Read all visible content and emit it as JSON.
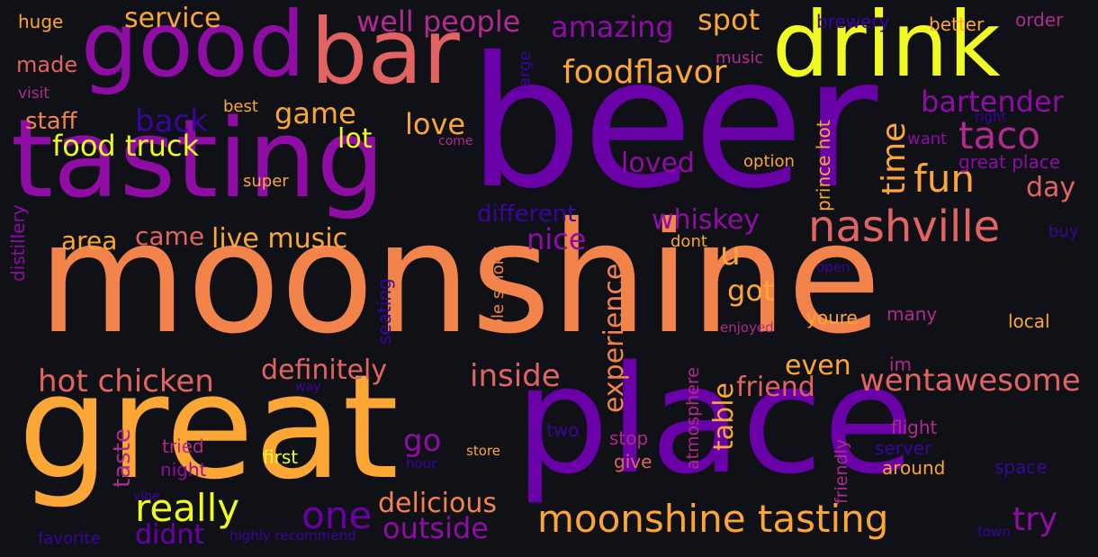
{
  "palette": {
    "background": "#0f1117",
    "violet": "#6a00a8",
    "purple": "#8f0da4",
    "magenta": "#b12a90",
    "pink": "#cc4778",
    "salmon": "#e16462",
    "orange": "#f2844b",
    "amber": "#fca636",
    "yellow": "#f0f921",
    "indigo": "#3b049a"
  },
  "words": [
    {
      "text": "moonshine",
      "color": "orange"
    },
    {
      "text": "beer",
      "color": "violet"
    },
    {
      "text": "great",
      "color": "amber"
    },
    {
      "text": "place",
      "color": "violet"
    },
    {
      "text": "tasting",
      "color": "purple"
    },
    {
      "text": "good",
      "color": "purple"
    },
    {
      "text": "bar",
      "color": "salmon"
    },
    {
      "text": "drink",
      "color": "yellow"
    },
    {
      "text": "nashville",
      "color": "salmon"
    },
    {
      "text": "moonshine tasting",
      "color": "amber"
    },
    {
      "text": "taco",
      "color": "magenta"
    },
    {
      "text": "fun",
      "color": "amber"
    },
    {
      "text": "food truck",
      "color": "yellow"
    },
    {
      "text": "hot chicken",
      "color": "salmon"
    },
    {
      "text": "really",
      "color": "yellow"
    },
    {
      "text": "one",
      "color": "violet"
    },
    {
      "text": "foodflavor",
      "color": "amber"
    },
    {
      "text": "well people",
      "color": "magenta"
    },
    {
      "text": "amazing",
      "color": "purple"
    },
    {
      "text": "spot",
      "color": "amber"
    },
    {
      "text": "service",
      "color": "amber"
    },
    {
      "text": "bartender",
      "color": "purple"
    },
    {
      "text": "game",
      "color": "amber"
    },
    {
      "text": "back",
      "color": "indigo"
    },
    {
      "text": "staff",
      "color": "orange"
    },
    {
      "text": "made",
      "color": "salmon"
    },
    {
      "text": "love",
      "color": "amber"
    },
    {
      "text": "lot",
      "color": "yellow"
    },
    {
      "text": "loved",
      "color": "purple"
    },
    {
      "text": "whiskey",
      "color": "purple"
    },
    {
      "text": "different",
      "color": "indigo"
    },
    {
      "text": "nice",
      "color": "purple"
    },
    {
      "text": "live music",
      "color": "amber"
    },
    {
      "text": "came",
      "color": "salmon"
    },
    {
      "text": "area",
      "color": "amber"
    },
    {
      "text": "got",
      "color": "amber"
    },
    {
      "text": "u",
      "color": "amber"
    },
    {
      "text": "definitely",
      "color": "salmon"
    },
    {
      "text": "inside",
      "color": "salmon"
    },
    {
      "text": "friend",
      "color": "salmon"
    },
    {
      "text": "wentawesome",
      "color": "salmon"
    },
    {
      "text": "even",
      "color": "amber"
    },
    {
      "text": "go",
      "color": "purple"
    },
    {
      "text": "delicious",
      "color": "orange"
    },
    {
      "text": "outside",
      "color": "purple"
    },
    {
      "text": "try",
      "color": "purple"
    },
    {
      "text": "day",
      "color": "salmon"
    },
    {
      "text": "didnt",
      "color": "violet"
    },
    {
      "text": "time",
      "color": "amber"
    },
    {
      "text": "experience",
      "color": "orange"
    },
    {
      "text": "table",
      "color": "amber"
    },
    {
      "text": "taste",
      "color": "magenta"
    },
    {
      "text": "huge",
      "color": "amber"
    },
    {
      "text": "visit",
      "color": "magenta"
    },
    {
      "text": "best",
      "color": "amber"
    },
    {
      "text": "super",
      "color": "amber"
    },
    {
      "text": "tried",
      "color": "magenta"
    },
    {
      "text": "night",
      "color": "purple"
    },
    {
      "text": "first",
      "color": "yellow"
    },
    {
      "text": "store",
      "color": "amber"
    },
    {
      "text": "two",
      "color": "indigo"
    },
    {
      "text": "stop",
      "color": "magenta"
    },
    {
      "text": "give",
      "color": "salmon"
    },
    {
      "text": "hour",
      "color": "indigo"
    },
    {
      "text": "vibe",
      "color": "indigo"
    },
    {
      "text": "favorite",
      "color": "indigo"
    },
    {
      "text": "highly recommend",
      "color": "indigo"
    },
    {
      "text": "town",
      "color": "indigo"
    },
    {
      "text": "space",
      "color": "indigo"
    },
    {
      "text": "around",
      "color": "amber"
    },
    {
      "text": "server",
      "color": "indigo"
    },
    {
      "text": "flight",
      "color": "magenta"
    },
    {
      "text": "im",
      "color": "magenta"
    },
    {
      "text": "many",
      "color": "magenta"
    },
    {
      "text": "youre",
      "color": "amber"
    },
    {
      "text": "local",
      "color": "amber"
    },
    {
      "text": "enjoyed",
      "color": "magenta"
    },
    {
      "text": "dont",
      "color": "amber"
    },
    {
      "text": "open",
      "color": "indigo"
    },
    {
      "text": "buy",
      "color": "indigo"
    },
    {
      "text": "option",
      "color": "amber"
    },
    {
      "text": "music",
      "color": "magenta"
    },
    {
      "text": "come",
      "color": "magenta"
    },
    {
      "text": "brewery",
      "color": "indigo"
    },
    {
      "text": "better",
      "color": "amber"
    },
    {
      "text": "order",
      "color": "magenta"
    },
    {
      "text": "right",
      "color": "indigo"
    },
    {
      "text": "want",
      "color": "purple"
    },
    {
      "text": "great place",
      "color": "purple"
    },
    {
      "text": "way",
      "color": "indigo"
    },
    {
      "text": "large",
      "color": "indigo"
    },
    {
      "text": "prince hot",
      "color": "amber"
    },
    {
      "text": "ole smoky",
      "color": "orange"
    },
    {
      "text": "seating",
      "color": "indigo"
    },
    {
      "text": "atmosphere",
      "color": "magenta"
    },
    {
      "text": "friendly",
      "color": "magenta"
    },
    {
      "text": "distillery",
      "color": "purple"
    }
  ]
}
